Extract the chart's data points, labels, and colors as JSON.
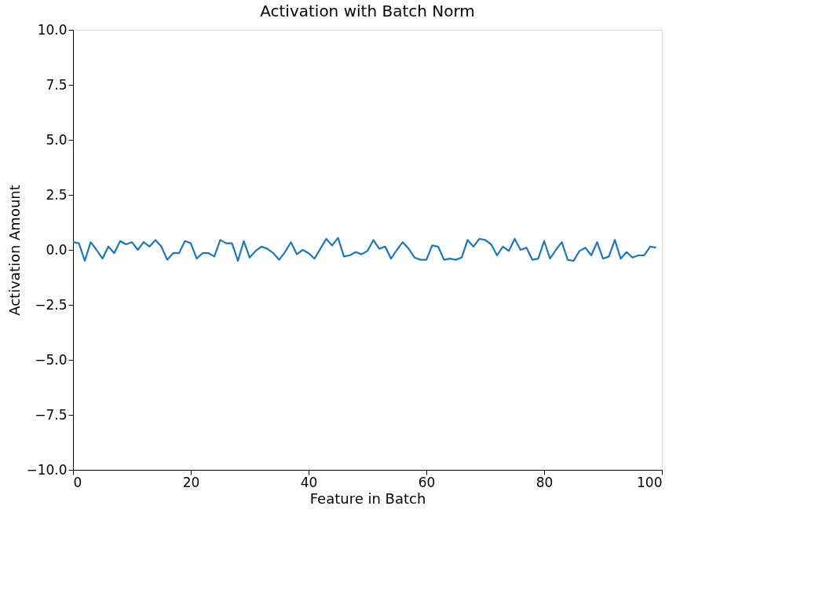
{
  "chart_data": {
    "type": "line",
    "title": "Activation with Batch Norm",
    "xlabel": "Feature in Batch",
    "ylabel": "Activation Amount",
    "x": [
      0,
      1,
      2,
      3,
      4,
      5,
      6,
      7,
      8,
      9,
      10,
      11,
      12,
      13,
      14,
      15,
      16,
      17,
      18,
      19,
      20,
      21,
      22,
      23,
      24,
      25,
      26,
      27,
      28,
      29,
      30,
      31,
      32,
      33,
      34,
      35,
      36,
      37,
      38,
      39,
      40,
      41,
      42,
      43,
      44,
      45,
      46,
      47,
      48,
      49,
      50,
      51,
      52,
      53,
      54,
      55,
      56,
      57,
      58,
      59,
      60,
      61,
      62,
      63,
      64,
      65,
      66,
      67,
      68,
      69,
      70,
      71,
      72,
      73,
      74,
      75,
      76,
      77,
      78,
      79,
      80,
      81,
      82,
      83,
      84,
      85,
      86,
      87,
      88,
      89,
      90,
      91,
      92,
      93,
      94,
      95,
      96,
      97,
      98,
      99
    ],
    "series": [
      {
        "color": "#1f77b4",
        "values": [
          0.35,
          0.3,
          -0.5,
          0.35,
          0.0,
          -0.4,
          0.15,
          -0.15,
          0.4,
          0.25,
          0.35,
          0.0,
          0.35,
          0.15,
          0.45,
          0.15,
          -0.45,
          -0.15,
          -0.15,
          0.4,
          0.3,
          -0.4,
          -0.15,
          -0.15,
          -0.3,
          0.45,
          0.3,
          0.3,
          -0.5,
          0.4,
          -0.35,
          -0.05,
          0.15,
          0.05,
          -0.15,
          -0.45,
          -0.1,
          0.35,
          -0.2,
          0.0,
          -0.15,
          -0.4,
          0.05,
          0.5,
          0.2,
          0.55,
          -0.3,
          -0.25,
          -0.1,
          -0.2,
          -0.05,
          0.45,
          0.05,
          0.15,
          -0.4,
          0.0,
          0.35,
          0.05,
          -0.35,
          -0.45,
          -0.45,
          0.2,
          0.15,
          -0.45,
          -0.4,
          -0.45,
          -0.35,
          0.45,
          0.15,
          0.5,
          0.45,
          0.25,
          -0.25,
          0.15,
          -0.05,
          0.5,
          0.0,
          0.1,
          -0.45,
          -0.4,
          0.4,
          -0.4,
          0.0,
          0.35,
          -0.45,
          -0.5,
          -0.05,
          0.1,
          -0.25,
          0.35,
          -0.4,
          -0.3,
          0.45,
          -0.4,
          -0.1,
          -0.35,
          -0.25,
          -0.25,
          0.15,
          0.1
        ]
      }
    ],
    "xlim": [
      0,
      100
    ],
    "xticks": [
      0,
      20,
      40,
      60,
      80,
      100
    ],
    "ylim": [
      -10,
      10
    ],
    "yticks": [
      {
        "value": -10,
        "label": "−10.0"
      },
      {
        "value": -7.5,
        "label": "−7.5"
      },
      {
        "value": -5,
        "label": "−5.0"
      },
      {
        "value": -2.5,
        "label": "−2.5"
      },
      {
        "value": 0,
        "label": "0.0"
      },
      {
        "value": 2.5,
        "label": "2.5"
      },
      {
        "value": 5,
        "label": "5.0"
      },
      {
        "value": 7.5,
        "label": "7.5"
      },
      {
        "value": 10,
        "label": "10.0"
      }
    ],
    "grid": false,
    "marker": "none",
    "line_style": "solid"
  }
}
